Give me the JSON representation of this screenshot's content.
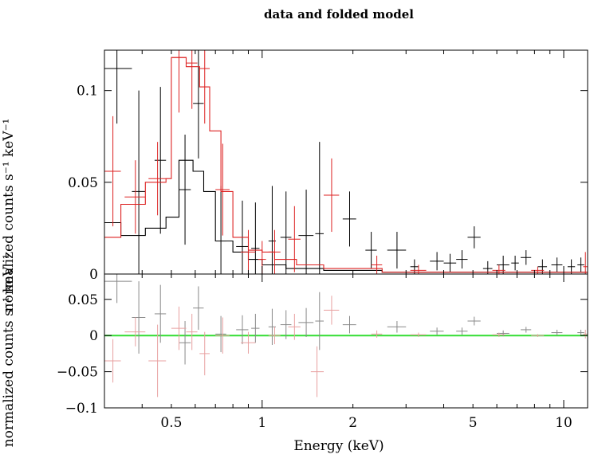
{
  "chart_data": [
    {
      "type": "scatter",
      "panel": "top",
      "title": "data and folded model",
      "xlabel": "",
      "ylabel": "normalized counts s⁻¹ keV⁻¹",
      "x_scale": "log",
      "xlim": [
        0.3,
        12
      ],
      "ylim": [
        0,
        0.122
      ],
      "grid": false,
      "x_ticks": [],
      "y_ticks": [
        {
          "value": 0,
          "label": "0"
        },
        {
          "value": 0.05,
          "label": "0.05"
        },
        {
          "value": 0.1,
          "label": "0.1"
        }
      ],
      "series": [
        {
          "color": "#000000",
          "points": [
            {
              "x": 0.33,
              "xlo": 0.3,
              "xhi": 0.37,
              "y": 0.112,
              "yerr": 0.03
            },
            {
              "x": 0.39,
              "xlo": 0.37,
              "xhi": 0.41,
              "y": 0.045,
              "yerr": 0.055
            },
            {
              "x": 0.46,
              "xlo": 0.44,
              "xhi": 0.48,
              "y": 0.062,
              "yerr": 0.04
            },
            {
              "x": 0.555,
              "xlo": 0.53,
              "xhi": 0.58,
              "y": 0.046,
              "yerr": 0.03
            },
            {
              "x": 0.615,
              "xlo": 0.59,
              "xhi": 0.64,
              "y": 0.093,
              "yerr": 0.03
            },
            {
              "x": 0.73,
              "xlo": 0.7,
              "xhi": 0.76,
              "y": 0.018,
              "yerr": 0.03
            },
            {
              "x": 0.86,
              "xlo": 0.82,
              "xhi": 0.9,
              "y": 0.015,
              "yerr": 0.025
            },
            {
              "x": 0.95,
              "xlo": 0.92,
              "xhi": 0.98,
              "y": 0.014,
              "yerr": 0.025
            },
            {
              "x": 1.08,
              "xlo": 1.05,
              "xhi": 1.11,
              "y": 0.018,
              "yerr": 0.03
            },
            {
              "x": 1.2,
              "xlo": 1.15,
              "xhi": 1.25,
              "y": 0.02,
              "yerr": 0.025
            },
            {
              "x": 1.4,
              "xlo": 1.32,
              "xhi": 1.48,
              "y": 0.021,
              "yerr": 0.025
            },
            {
              "x": 1.55,
              "xlo": 1.5,
              "xhi": 1.6,
              "y": 0.022,
              "yerr": 0.05
            },
            {
              "x": 1.95,
              "xlo": 1.85,
              "xhi": 2.05,
              "y": 0.03,
              "yerr": 0.015
            },
            {
              "x": 2.3,
              "xlo": 2.2,
              "xhi": 2.4,
              "y": 0.013,
              "yerr": 0.01
            },
            {
              "x": 2.8,
              "xlo": 2.6,
              "xhi": 3.0,
              "y": 0.013,
              "yerr": 0.01
            },
            {
              "x": 3.2,
              "xlo": 3.1,
              "xhi": 3.3,
              "y": 0.004,
              "yerr": 0.004
            },
            {
              "x": 3.8,
              "xlo": 3.6,
              "xhi": 4.0,
              "y": 0.007,
              "yerr": 0.005
            },
            {
              "x": 4.2,
              "xlo": 4.0,
              "xhi": 4.4,
              "y": 0.006,
              "yerr": 0.005
            },
            {
              "x": 4.6,
              "xlo": 4.4,
              "xhi": 4.8,
              "y": 0.008,
              "yerr": 0.005
            },
            {
              "x": 5.05,
              "xlo": 4.8,
              "xhi": 5.3,
              "y": 0.02,
              "yerr": 0.006
            },
            {
              "x": 5.6,
              "xlo": 5.4,
              "xhi": 5.8,
              "y": 0.003,
              "yerr": 0.004
            },
            {
              "x": 6.3,
              "xlo": 6.0,
              "xhi": 6.6,
              "y": 0.005,
              "yerr": 0.005
            },
            {
              "x": 6.9,
              "xlo": 6.7,
              "xhi": 7.1,
              "y": 0.006,
              "yerr": 0.004
            },
            {
              "x": 7.5,
              "xlo": 7.2,
              "xhi": 7.8,
              "y": 0.009,
              "yerr": 0.004
            },
            {
              "x": 8.5,
              "xlo": 8.2,
              "xhi": 8.8,
              "y": 0.004,
              "yerr": 0.004
            },
            {
              "x": 9.5,
              "xlo": 9.1,
              "xhi": 9.9,
              "y": 0.005,
              "yerr": 0.004
            },
            {
              "x": 10.6,
              "xlo": 10.3,
              "xhi": 10.9,
              "y": 0.004,
              "yerr": 0.004
            },
            {
              "x": 11.4,
              "xlo": 11.1,
              "xhi": 11.7,
              "y": 0.005,
              "yerr": 0.004
            }
          ],
          "model": [
            [
              0.3,
              0.028
            ],
            [
              0.34,
              0.028
            ],
            [
              0.34,
              0.021
            ],
            [
              0.41,
              0.021
            ],
            [
              0.41,
              0.025
            ],
            [
              0.48,
              0.025
            ],
            [
              0.48,
              0.031
            ],
            [
              0.53,
              0.031
            ],
            [
              0.53,
              0.062
            ],
            [
              0.59,
              0.062
            ],
            [
              0.59,
              0.056
            ],
            [
              0.64,
              0.056
            ],
            [
              0.64,
              0.045
            ],
            [
              0.7,
              0.045
            ],
            [
              0.7,
              0.018
            ],
            [
              0.8,
              0.018
            ],
            [
              0.8,
              0.012
            ],
            [
              0.9,
              0.012
            ],
            [
              0.9,
              0.008
            ],
            [
              1.0,
              0.008
            ],
            [
              1.0,
              0.005
            ],
            [
              1.2,
              0.005
            ],
            [
              1.2,
              0.003
            ],
            [
              1.6,
              0.003
            ],
            [
              1.6,
              0.002
            ],
            [
              2.5,
              0.002
            ],
            [
              2.5,
              0.001
            ],
            [
              12,
              0.001
            ]
          ]
        },
        {
          "color": "#dd2222",
          "points": [
            {
              "x": 0.32,
              "xlo": 0.3,
              "xhi": 0.34,
              "y": 0.056,
              "yerr": 0.03
            },
            {
              "x": 0.38,
              "xlo": 0.35,
              "xhi": 0.41,
              "y": 0.042,
              "yerr": 0.02
            },
            {
              "x": 0.45,
              "xlo": 0.42,
              "xhi": 0.48,
              "y": 0.052,
              "yerr": 0.02
            },
            {
              "x": 0.53,
              "xlo": 0.5,
              "xhi": 0.56,
              "y": 0.118,
              "yerr": 0.03
            },
            {
              "x": 0.585,
              "xlo": 0.56,
              "xhi": 0.61,
              "y": 0.115,
              "yerr": 0.025
            },
            {
              "x": 0.645,
              "xlo": 0.62,
              "xhi": 0.67,
              "y": 0.112,
              "yerr": 0.03
            },
            {
              "x": 0.74,
              "xlo": 0.7,
              "xhi": 0.78,
              "y": 0.046,
              "yerr": 0.025
            },
            {
              "x": 0.9,
              "xlo": 0.85,
              "xhi": 0.95,
              "y": 0.012,
              "yerr": 0.012
            },
            {
              "x": 1.0,
              "xlo": 0.97,
              "xhi": 1.03,
              "y": 0.008,
              "yerr": 0.01
            },
            {
              "x": 1.1,
              "xlo": 1.05,
              "xhi": 1.15,
              "y": 0.012,
              "yerr": 0.012
            },
            {
              "x": 1.28,
              "xlo": 1.22,
              "xhi": 1.34,
              "y": 0.019,
              "yerr": 0.018
            },
            {
              "x": 1.7,
              "xlo": 1.6,
              "xhi": 1.8,
              "y": 0.043,
              "yerr": 0.02
            },
            {
              "x": 2.4,
              "xlo": 2.3,
              "xhi": 2.5,
              "y": 0.005,
              "yerr": 0.005
            },
            {
              "x": 3.3,
              "xlo": 3.1,
              "xhi": 3.5,
              "y": 0.002,
              "yerr": 0.003
            },
            {
              "x": 6.1,
              "xlo": 5.8,
              "xhi": 6.4,
              "y": 0.002,
              "yerr": 0.003
            },
            {
              "x": 8.2,
              "xlo": 7.8,
              "xhi": 8.6,
              "y": 0.002,
              "yerr": 0.002
            },
            {
              "x": 11.8,
              "xlo": 11.6,
              "xhi": 12,
              "y": 0.004,
              "yerr": 0.008
            }
          ],
          "model": [
            [
              0.3,
              0.02
            ],
            [
              0.34,
              0.02
            ],
            [
              0.34,
              0.038
            ],
            [
              0.41,
              0.038
            ],
            [
              0.41,
              0.05
            ],
            [
              0.48,
              0.05
            ],
            [
              0.48,
              0.052
            ],
            [
              0.5,
              0.052
            ],
            [
              0.5,
              0.118
            ],
            [
              0.56,
              0.118
            ],
            [
              0.56,
              0.113
            ],
            [
              0.62,
              0.113
            ],
            [
              0.62,
              0.102
            ],
            [
              0.67,
              0.102
            ],
            [
              0.67,
              0.078
            ],
            [
              0.73,
              0.078
            ],
            [
              0.73,
              0.045
            ],
            [
              0.8,
              0.045
            ],
            [
              0.8,
              0.02
            ],
            [
              0.9,
              0.02
            ],
            [
              0.9,
              0.013
            ],
            [
              1.0,
              0.013
            ],
            [
              1.0,
              0.012
            ],
            [
              1.1,
              0.012
            ],
            [
              1.1,
              0.008
            ],
            [
              1.3,
              0.008
            ],
            [
              1.3,
              0.005
            ],
            [
              1.6,
              0.005
            ],
            [
              1.6,
              0.003
            ],
            [
              2.5,
              0.003
            ],
            [
              2.5,
              0.001
            ],
            [
              12,
              0.001
            ]
          ]
        }
      ]
    },
    {
      "type": "scatter",
      "panel": "bottom",
      "title": "",
      "xlabel": "Energy (keV)",
      "ylabel": "normalized counts s⁻¹ keV⁻¹",
      "x_scale": "log",
      "xlim": [
        0.3,
        12
      ],
      "ylim": [
        -0.1,
        0.085
      ],
      "grid": false,
      "x_ticks": [
        {
          "value": 0.5,
          "label": "0.5"
        },
        {
          "value": 1,
          "label": "1"
        },
        {
          "value": 2,
          "label": "2"
        },
        {
          "value": 5,
          "label": "5"
        },
        {
          "value": 10,
          "label": "10"
        }
      ],
      "y_ticks": [
        {
          "value": -0.1,
          "label": "−0.1"
        },
        {
          "value": -0.05,
          "label": "−0.05"
        },
        {
          "value": 0,
          "label": "0"
        },
        {
          "value": 0.05,
          "label": "0.05"
        }
      ],
      "reference_line": {
        "y": 0,
        "color": "#33dd33"
      },
      "series": [
        {
          "color": "#888888",
          "points": [
            {
              "x": 0.33,
              "xlo": 0.3,
              "xhi": 0.37,
              "y": 0.075,
              "yerr": 0.03
            },
            {
              "x": 0.39,
              "xlo": 0.37,
              "xhi": 0.41,
              "y": 0.025,
              "yerr": 0.05
            },
            {
              "x": 0.46,
              "xlo": 0.44,
              "xhi": 0.48,
              "y": 0.03,
              "yerr": 0.04
            },
            {
              "x": 0.555,
              "xlo": 0.53,
              "xhi": 0.58,
              "y": -0.01,
              "yerr": 0.03
            },
            {
              "x": 0.615,
              "xlo": 0.59,
              "xhi": 0.64,
              "y": 0.038,
              "yerr": 0.03
            },
            {
              "x": 0.73,
              "xlo": 0.7,
              "xhi": 0.76,
              "y": 0.002,
              "yerr": 0.025
            },
            {
              "x": 0.86,
              "xlo": 0.82,
              "xhi": 0.9,
              "y": 0.008,
              "yerr": 0.02
            },
            {
              "x": 0.95,
              "xlo": 0.92,
              "xhi": 0.98,
              "y": 0.01,
              "yerr": 0.02
            },
            {
              "x": 1.08,
              "xlo": 1.05,
              "xhi": 1.11,
              "y": 0.012,
              "yerr": 0.025
            },
            {
              "x": 1.2,
              "xlo": 1.15,
              "xhi": 1.25,
              "y": 0.015,
              "yerr": 0.02
            },
            {
              "x": 1.4,
              "xlo": 1.32,
              "xhi": 1.48,
              "y": 0.018,
              "yerr": 0.02
            },
            {
              "x": 1.55,
              "xlo": 1.5,
              "xhi": 1.6,
              "y": 0.02,
              "yerr": 0.04
            },
            {
              "x": 1.95,
              "xlo": 1.85,
              "xhi": 2.05,
              "y": 0.015,
              "yerr": 0.012
            },
            {
              "x": 2.8,
              "xlo": 2.6,
              "xhi": 3.0,
              "y": 0.012,
              "yerr": 0.008
            },
            {
              "x": 3.8,
              "xlo": 3.6,
              "xhi": 4.0,
              "y": 0.006,
              "yerr": 0.005
            },
            {
              "x": 4.6,
              "xlo": 4.4,
              "xhi": 4.8,
              "y": 0.006,
              "yerr": 0.005
            },
            {
              "x": 5.05,
              "xlo": 4.8,
              "xhi": 5.3,
              "y": 0.02,
              "yerr": 0.006
            },
            {
              "x": 6.3,
              "xlo": 6.0,
              "xhi": 6.6,
              "y": 0.003,
              "yerr": 0.004
            },
            {
              "x": 7.5,
              "xlo": 7.2,
              "xhi": 7.8,
              "y": 0.008,
              "yerr": 0.004
            },
            {
              "x": 9.5,
              "xlo": 9.1,
              "xhi": 9.9,
              "y": 0.004,
              "yerr": 0.004
            },
            {
              "x": 11.4,
              "xlo": 11.1,
              "xhi": 11.7,
              "y": 0.004,
              "yerr": 0.004
            }
          ]
        },
        {
          "color": "#e8a0a0",
          "points": [
            {
              "x": 0.32,
              "xlo": 0.3,
              "xhi": 0.34,
              "y": -0.035,
              "yerr": 0.03
            },
            {
              "x": 0.38,
              "xlo": 0.35,
              "xhi": 0.41,
              "y": 0.005,
              "yerr": 0.02
            },
            {
              "x": 0.45,
              "xlo": 0.42,
              "xhi": 0.48,
              "y": -0.035,
              "yerr": 0.05
            },
            {
              "x": 0.53,
              "xlo": 0.5,
              "xhi": 0.56,
              "y": 0.01,
              "yerr": 0.03
            },
            {
              "x": 0.585,
              "xlo": 0.56,
              "xhi": 0.61,
              "y": 0.005,
              "yerr": 0.025
            },
            {
              "x": 0.645,
              "xlo": 0.62,
              "xhi": 0.67,
              "y": -0.025,
              "yerr": 0.03
            },
            {
              "x": 0.74,
              "xlo": 0.7,
              "xhi": 0.78,
              "y": 0.0,
              "yerr": 0.025
            },
            {
              "x": 0.9,
              "xlo": 0.85,
              "xhi": 0.95,
              "y": -0.01,
              "yerr": 0.015
            },
            {
              "x": 1.1,
              "xlo": 1.05,
              "xhi": 1.15,
              "y": 0.0,
              "yerr": 0.012
            },
            {
              "x": 1.28,
              "xlo": 1.22,
              "xhi": 1.34,
              "y": 0.012,
              "yerr": 0.018
            },
            {
              "x": 1.52,
              "xlo": 1.45,
              "xhi": 1.6,
              "y": -0.05,
              "yerr": 0.035
            },
            {
              "x": 1.7,
              "xlo": 1.6,
              "xhi": 1.8,
              "y": 0.035,
              "yerr": 0.02
            },
            {
              "x": 2.4,
              "xlo": 2.3,
              "xhi": 2.5,
              "y": 0.002,
              "yerr": 0.005
            },
            {
              "x": 3.3,
              "xlo": 3.1,
              "xhi": 3.5,
              "y": 0.001,
              "yerr": 0.003
            },
            {
              "x": 6.1,
              "xlo": 5.8,
              "xhi": 6.4,
              "y": 0.001,
              "yerr": 0.003
            },
            {
              "x": 8.2,
              "xlo": 7.8,
              "xhi": 8.6,
              "y": 0.0,
              "yerr": 0.002
            },
            {
              "x": 11.8,
              "xlo": 11.6,
              "xhi": 12,
              "y": 0.002,
              "yerr": 0.006
            }
          ]
        }
      ]
    }
  ]
}
